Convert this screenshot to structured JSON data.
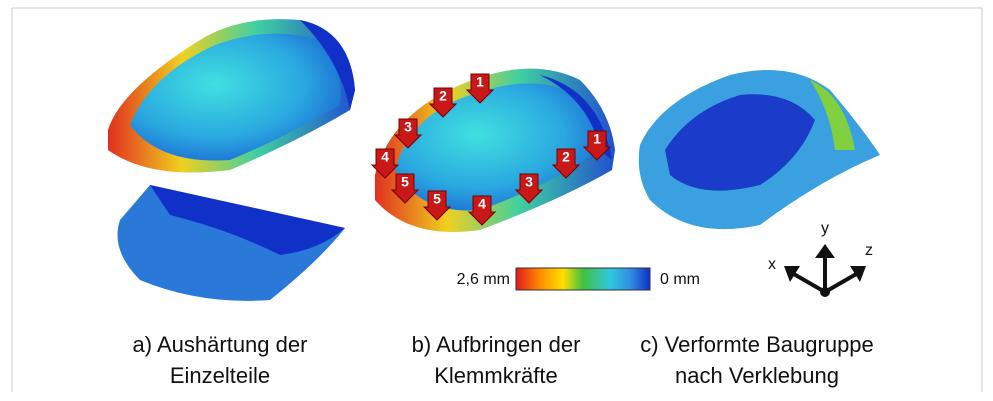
{
  "panels": [
    {
      "caption": [
        "a) Aushärtung der",
        "Einzelteile"
      ]
    },
    {
      "caption": [
        "b) Aufbringen der",
        "Klemmkräfte"
      ]
    },
    {
      "caption": [
        "c) Verformte Baugruppe",
        "nach Verklebung"
      ]
    }
  ],
  "force_labels": [
    "1",
    "2",
    "3",
    "4",
    "5",
    "5",
    "4",
    "3",
    "2",
    "1"
  ],
  "legend": {
    "max_label": "2,6 mm",
    "min_label": "0 mm"
  },
  "axes": {
    "x": "x",
    "y": "y",
    "z": "z"
  }
}
